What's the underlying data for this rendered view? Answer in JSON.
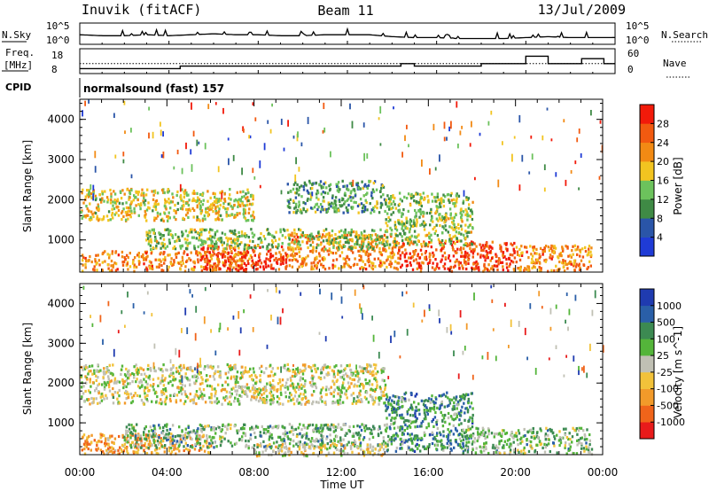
{
  "header": {
    "station": "Inuvik (fitACF)",
    "beam": "Beam 11",
    "date": "13/Jul/2009"
  },
  "noise_panel": {
    "left_label": "N.Sky",
    "right_label": "N.Search",
    "left_ticks": [
      "10^5",
      "10^0"
    ],
    "right_ticks": [
      "10^5",
      "10^0"
    ]
  },
  "freq_panel": {
    "left_label_line1": "Freq.",
    "left_label_line2": "[MHz]",
    "right_label": "Nave",
    "left_ticks": [
      "18",
      "8"
    ],
    "right_ticks": [
      "60",
      "0"
    ]
  },
  "cpid": {
    "label": "CPID",
    "value": "normalsound (fast) 157"
  },
  "xaxis": {
    "title": "Time UT",
    "ticks": [
      "00:00",
      "04:00",
      "08:00",
      "12:00",
      "16:00",
      "20:00",
      "00:00"
    ]
  },
  "colors": {
    "power": [
      "#1f3bd6",
      "#2a55a8",
      "#3f8a45",
      "#6cc25c",
      "#f2c420",
      "#f28a14",
      "#f25a10",
      "#f21a0a"
    ],
    "velocity": [
      "#e81b1b",
      "#f0641a",
      "#f29a2a",
      "#f2c23a",
      "#c0c0b4",
      "#54b53a",
      "#3c8a52",
      "#2a5fa8",
      "#1f3bb0"
    ]
  },
  "chart_data": [
    {
      "type": "line",
      "title": "",
      "x": [
        0,
        1,
        2,
        3,
        4,
        5,
        6,
        7,
        8,
        9,
        10,
        11,
        12,
        13,
        14,
        15,
        16,
        17,
        18,
        19,
        20,
        21,
        22,
        23,
        24
      ],
      "series": [
        {
          "values": [
            0.5,
            0.45,
            0.45,
            0.5,
            0.45,
            0.5,
            0.55,
            0.5,
            0.5,
            0.45,
            0.45,
            0.5,
            0.5,
            0.5,
            0.4,
            0.35,
            0.35,
            0.3,
            0.3,
            0.3,
            0.35,
            0.4,
            0.35,
            0.35,
            0.35
          ]
        }
      ],
      "ylim": [
        0,
        1
      ]
    },
    {
      "type": "line",
      "title": "",
      "x": [
        0,
        3.8,
        4.5,
        8.5,
        14.0,
        14.4,
        15.0,
        18.0,
        20.0,
        21.0,
        22.5,
        23.5,
        24.0
      ],
      "series": [
        {
          "values": [
            10,
            10,
            11,
            11,
            11,
            12,
            11,
            12,
            15,
            12,
            14,
            12,
            12
          ]
        },
        {
          "values": [
            12,
            12,
            12,
            12,
            12,
            12,
            12,
            12,
            12,
            12,
            12,
            12,
            12
          ]
        }
      ],
      "ylim": [
        8,
        18
      ]
    },
    {
      "type": "heatmap",
      "title": "",
      "xlabel": "",
      "ylabel": "Slant Range [km]",
      "xlim": [
        0,
        24
      ],
      "ylim": [
        200,
        4500
      ],
      "yticks": [
        1000,
        2000,
        3000,
        4000
      ],
      "colorbar": {
        "label": "Power [dB]",
        "ticks": [
          "4",
          "8",
          "12",
          "16",
          "20",
          "24",
          "28"
        ],
        "range": [
          0,
          32
        ]
      },
      "regions": [
        {
          "t0": 0.0,
          "t1": 8.0,
          "r0": 250,
          "r1": 750,
          "level": 0.72
        },
        {
          "t0": 5.5,
          "t1": 9.5,
          "r0": 300,
          "r1": 900,
          "level": 0.9
        },
        {
          "t0": 9.5,
          "t1": 14.5,
          "r0": 300,
          "r1": 1200,
          "level": 0.7
        },
        {
          "t0": 14.5,
          "t1": 20.0,
          "r0": 250,
          "r1": 1000,
          "level": 0.85
        },
        {
          "t0": 20.0,
          "t1": 23.5,
          "r0": 250,
          "r1": 900,
          "level": 0.7
        },
        {
          "t0": 0.0,
          "t1": 8.0,
          "r0": 1500,
          "r1": 2300,
          "level": 0.55
        },
        {
          "t0": 9.5,
          "t1": 14.0,
          "r0": 1700,
          "r1": 2500,
          "level": 0.35
        },
        {
          "t0": 14.0,
          "t1": 18.0,
          "r0": 900,
          "r1": 2200,
          "level": 0.45
        },
        {
          "t0": 3.0,
          "t1": 14.0,
          "r0": 800,
          "r1": 1300,
          "level": 0.45
        }
      ]
    },
    {
      "type": "heatmap",
      "title": "",
      "xlabel": "Time UT",
      "ylabel": "Slant Range [km]",
      "xlim": [
        0,
        24
      ],
      "ylim": [
        200,
        4500
      ],
      "yticks": [
        1000,
        2000,
        3000,
        4000
      ],
      "colorbar": {
        "label": "Velocity [m s^-1]",
        "ticks": [
          "1000",
          "500",
          "100",
          "25",
          "-25",
          "-100",
          "-500",
          "-1000"
        ],
        "range": [
          -1000,
          1000
        ]
      },
      "regions": [
        {
          "t0": 0.0,
          "t1": 6.0,
          "r0": 250,
          "r1": 750,
          "level": 0.3
        },
        {
          "t0": 2.0,
          "t1": 14.0,
          "r0": 400,
          "r1": 1000,
          "level": 0.62
        },
        {
          "t0": 0.0,
          "t1": 14.0,
          "r0": 1500,
          "r1": 2500,
          "level": 0.48
        },
        {
          "t0": 14.0,
          "t1": 18.0,
          "r0": 300,
          "r1": 1800,
          "level": 0.72
        },
        {
          "t0": 17.5,
          "t1": 23.5,
          "r0": 250,
          "r1": 900,
          "level": 0.6
        },
        {
          "t0": 8.0,
          "t1": 14.0,
          "r0": 200,
          "r1": 500,
          "level": 0.45
        }
      ]
    }
  ]
}
